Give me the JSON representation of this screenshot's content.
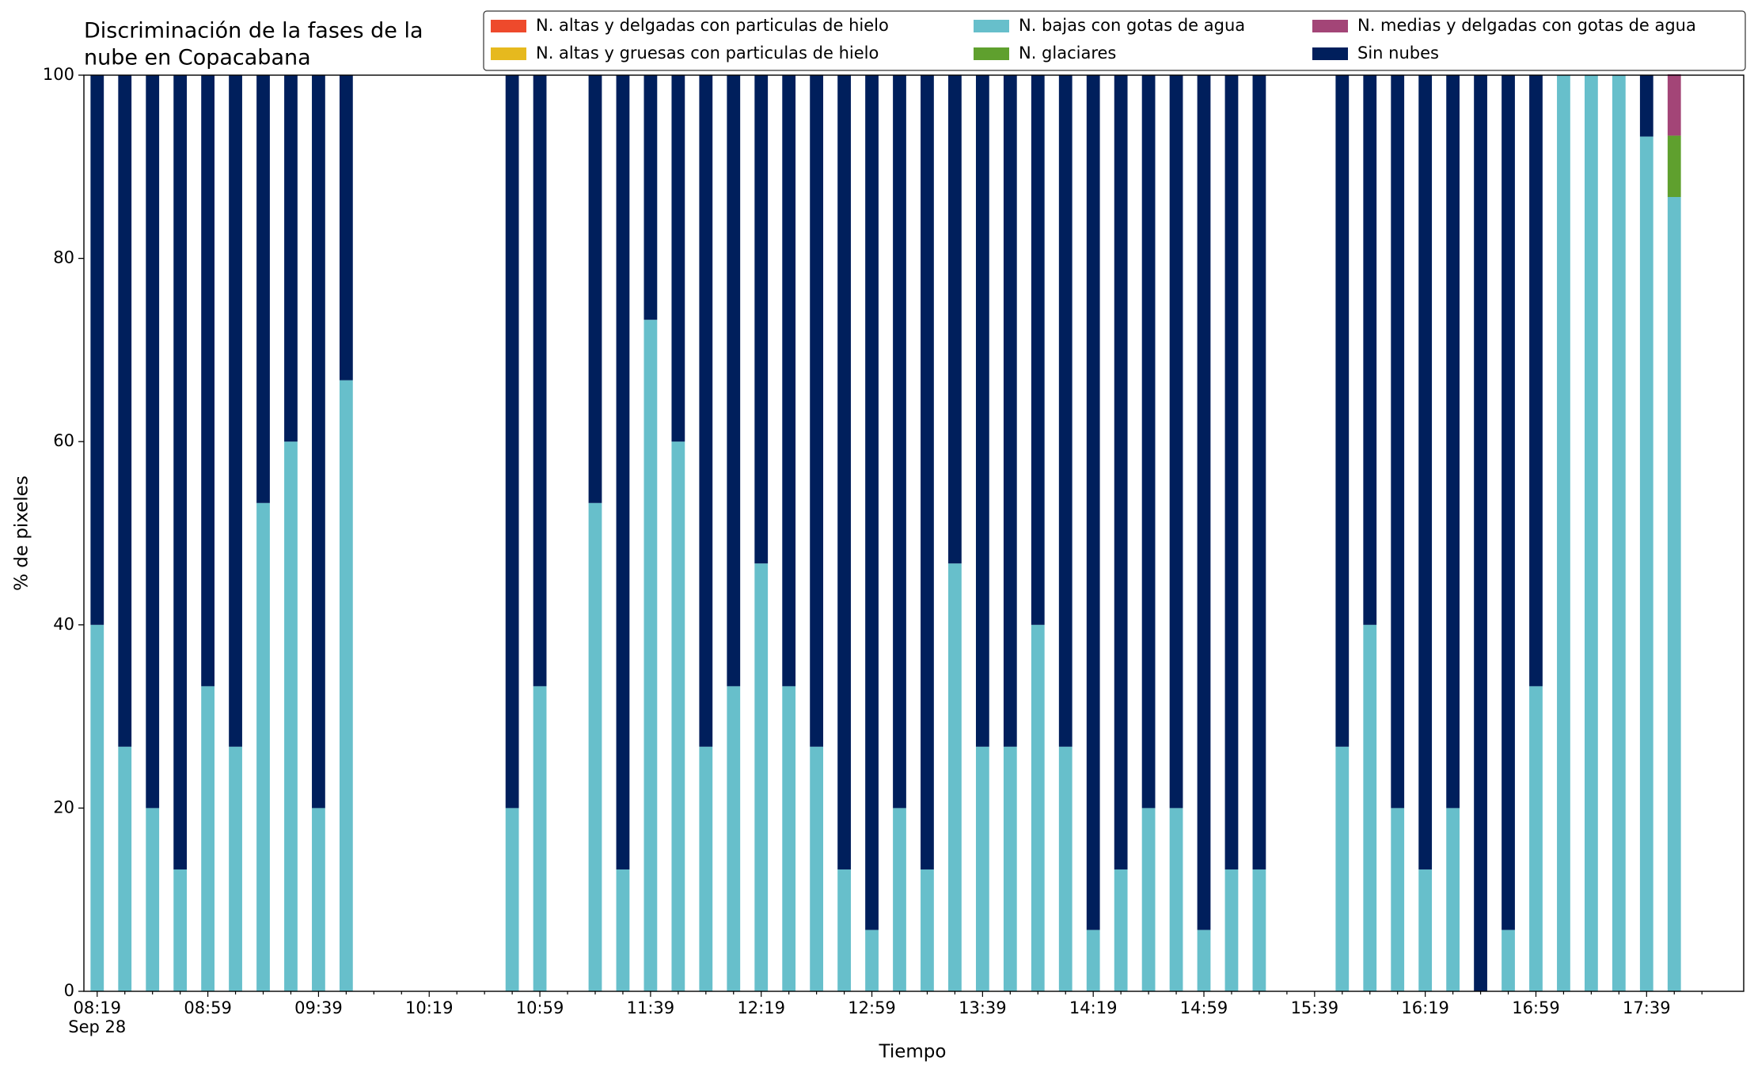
{
  "chart_data": {
    "type": "stacked_bar",
    "title_lines": [
      "Discriminación de la fases de la",
      "nube en Copacabana"
    ],
    "xlabel": "Tiempo",
    "ylabel": "% de pixeles",
    "x_date_label": "Sep 28",
    "categories": [
      "08:19",
      null,
      null,
      null,
      "08:59",
      null,
      null,
      null,
      "09:39",
      null,
      null,
      null,
      "10:19",
      null,
      null,
      null,
      "10:59",
      null,
      null,
      null,
      "11:39",
      null,
      null,
      null,
      "12:19",
      null,
      null,
      null,
      "12:59",
      null,
      null,
      null,
      "13:39",
      null,
      null,
      null,
      "14:19",
      null,
      null,
      null,
      "14:59",
      null,
      null,
      null,
      "15:39",
      null,
      null,
      null,
      "16:19",
      null,
      null,
      null,
      "16:59",
      null,
      null,
      null,
      "17:39",
      null
    ],
    "ylim": [
      0,
      100
    ],
    "yticks": [
      0,
      20,
      40,
      60,
      80,
      100
    ],
    "series": [
      {
        "name": "N. altas y delgadas con particulas de hielo",
        "color": "#ee4a2c",
        "values": [
          0,
          0,
          0,
          0,
          0,
          0,
          0,
          0,
          0,
          0,
          null,
          null,
          null,
          null,
          null,
          0,
          0,
          null,
          0,
          0,
          0,
          0,
          0,
          0,
          0,
          0,
          0,
          0,
          0,
          0,
          0,
          0,
          0,
          0,
          0,
          0,
          0,
          0,
          0,
          0,
          0,
          0,
          0,
          null,
          null,
          0,
          0,
          0,
          0,
          0,
          0,
          0,
          0,
          0,
          0,
          0,
          0,
          0
        ]
      },
      {
        "name": "N. altas y gruesas con particulas de hielo",
        "color": "#e6b91e",
        "values": [
          0,
          0,
          0,
          0,
          0,
          0,
          0,
          0,
          0,
          0,
          null,
          null,
          null,
          null,
          null,
          0,
          0,
          null,
          0,
          0,
          0,
          0,
          0,
          0,
          0,
          0,
          0,
          0,
          0,
          0,
          0,
          0,
          0,
          0,
          0,
          0,
          0,
          0,
          0,
          0,
          0,
          0,
          0,
          null,
          null,
          0,
          0,
          0,
          0,
          0,
          0,
          0,
          0,
          0,
          0,
          0,
          0,
          0
        ]
      },
      {
        "name": "N. bajas con gotas de agua",
        "color": "#67bfcb",
        "values": [
          40,
          26.7,
          20,
          13.3,
          33.3,
          26.7,
          53.3,
          60,
          20,
          66.7,
          null,
          null,
          null,
          null,
          null,
          20,
          33.3,
          null,
          53.3,
          13.3,
          73.3,
          60,
          26.7,
          33.3,
          46.7,
          33.3,
          26.7,
          13.3,
          6.7,
          20,
          13.3,
          46.7,
          26.7,
          26.7,
          40,
          26.7,
          6.7,
          13.3,
          20,
          20,
          6.7,
          13.3,
          13.3,
          null,
          null,
          26.7,
          40,
          20,
          13.3,
          20,
          0,
          6.7,
          33.3,
          100,
          100,
          100,
          93.3,
          86.7
        ]
      },
      {
        "name": "N. glaciares",
        "color": "#5fa02e",
        "values": [
          0,
          0,
          0,
          0,
          0,
          0,
          0,
          0,
          0,
          0,
          null,
          null,
          null,
          null,
          null,
          0,
          0,
          null,
          0,
          0,
          0,
          0,
          0,
          0,
          0,
          0,
          0,
          0,
          0,
          0,
          0,
          0,
          0,
          0,
          0,
          0,
          0,
          0,
          0,
          0,
          0,
          0,
          0,
          null,
          null,
          0,
          0,
          0,
          0,
          0,
          0,
          0,
          0,
          0,
          0,
          0,
          0,
          6.7
        ]
      },
      {
        "name": "N. medias y delgadas con gotas de agua",
        "color": "#a34577",
        "values": [
          0,
          0,
          0,
          0,
          0,
          0,
          0,
          0,
          0,
          0,
          null,
          null,
          null,
          null,
          null,
          0,
          0,
          null,
          0,
          0,
          0,
          0,
          0,
          0,
          0,
          0,
          0,
          0,
          0,
          0,
          0,
          0,
          0,
          0,
          0,
          0,
          0,
          0,
          0,
          0,
          0,
          0,
          0,
          null,
          null,
          0,
          0,
          0,
          0,
          0,
          0,
          0,
          0,
          0,
          0,
          0,
          0,
          6.7
        ]
      },
      {
        "name": "Sin nubes",
        "color": "#001f5c",
        "values": [
          60,
          73.3,
          80,
          86.7,
          66.7,
          73.3,
          46.7,
          40,
          80,
          33.3,
          null,
          null,
          null,
          null,
          null,
          80,
          66.7,
          null,
          46.7,
          86.7,
          26.7,
          40,
          73.3,
          66.7,
          53.3,
          66.7,
          73.3,
          86.7,
          93.3,
          80,
          86.7,
          53.3,
          73.3,
          73.3,
          60,
          73.3,
          93.3,
          86.7,
          80,
          80,
          93.3,
          86.7,
          86.7,
          null,
          null,
          73.3,
          60,
          80,
          86.7,
          80,
          100,
          93.3,
          66.7,
          0,
          0,
          0,
          6.7,
          0
        ]
      }
    ]
  }
}
